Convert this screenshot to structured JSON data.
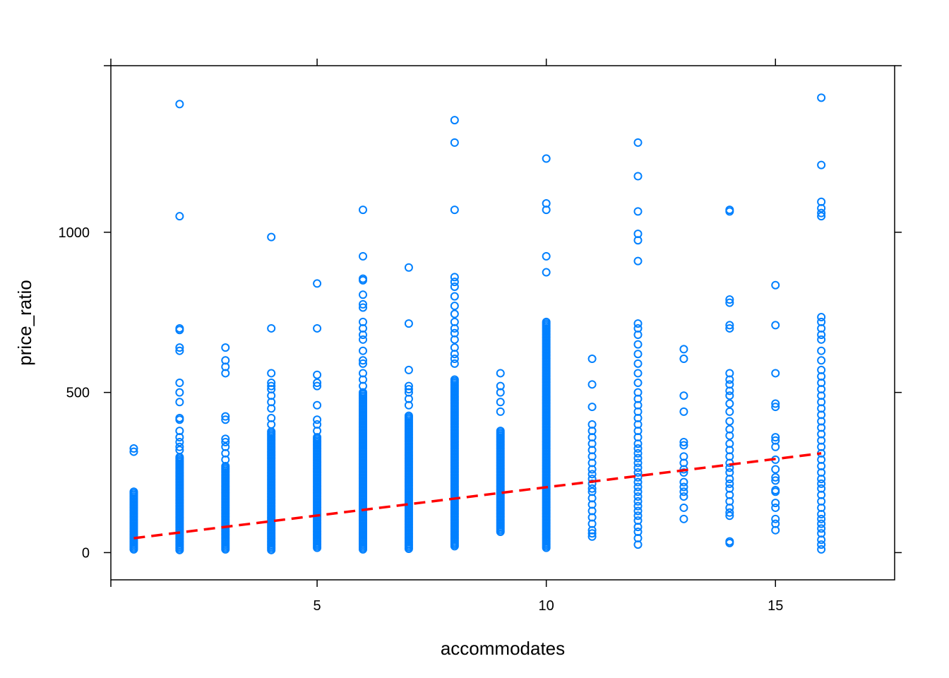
{
  "chart_data": {
    "type": "scatter",
    "title": "",
    "xlabel": "accommodates",
    "ylabel": "price_ratio",
    "xlim": [
      0.5,
      17.6
    ],
    "ylim": [
      -85,
      1520
    ],
    "x_ticks": [
      5,
      10,
      15
    ],
    "x_tick_labels": [
      "5",
      "10",
      "15"
    ],
    "y_ticks": [
      0,
      500,
      1000
    ],
    "y_tick_labels": [
      "0",
      "500",
      "1000"
    ],
    "grid": false,
    "point_color": "#0080ff",
    "fit_line": {
      "color": "#ff0000",
      "style": "dashed",
      "x": [
        1,
        16
      ],
      "y": [
        45,
        310
      ]
    },
    "columns": [
      {
        "x": 1,
        "ranges": [
          [
            10,
            190
          ]
        ],
        "outliers": [
          315,
          325
        ]
      },
      {
        "x": 2,
        "ranges": [
          [
            8,
            300
          ]
        ],
        "outliers": [
          320,
          330,
          345,
          360,
          380,
          415,
          420,
          470,
          500,
          530,
          630,
          640,
          695,
          700,
          1050,
          1400
        ]
      },
      {
        "x": 3,
        "ranges": [
          [
            10,
            270
          ]
        ],
        "outliers": [
          290,
          310,
          330,
          345,
          355,
          415,
          425,
          560,
          580,
          600,
          640
        ]
      },
      {
        "x": 4,
        "ranges": [
          [
            8,
            380
          ]
        ],
        "outliers": [
          400,
          420,
          450,
          470,
          490,
          510,
          520,
          530,
          560,
          700,
          985
        ]
      },
      {
        "x": 5,
        "ranges": [
          [
            15,
            360
          ]
        ],
        "outliers": [
          380,
          400,
          415,
          460,
          520,
          530,
          555,
          700,
          840
        ]
      },
      {
        "x": 6,
        "ranges": [
          [
            10,
            500
          ]
        ],
        "outliers": [
          520,
          540,
          560,
          590,
          600,
          630,
          665,
          680,
          700,
          720,
          765,
          775,
          805,
          850,
          855,
          925,
          1070
        ]
      },
      {
        "x": 7,
        "ranges": [
          [
            12,
            430
          ]
        ],
        "outliers": [
          460,
          480,
          500,
          510,
          520,
          570,
          715,
          890
        ]
      },
      {
        "x": 8,
        "ranges": [
          [
            20,
            540
          ]
        ],
        "outliers": [
          590,
          605,
          620,
          640,
          665,
          685,
          700,
          720,
          745,
          770,
          800,
          830,
          845,
          860,
          1070,
          1280,
          1350
        ]
      },
      {
        "x": 9,
        "ranges": [
          [
            65,
            380
          ]
        ],
        "outliers": [
          440,
          470,
          500,
          520,
          560
        ]
      },
      {
        "x": 10,
        "ranges": [
          [
            15,
            720
          ]
        ],
        "outliers": [
          875,
          925,
          1070,
          1090,
          1230
        ]
      },
      {
        "x": 11,
        "ranges": [],
        "outliers": [
          50,
          60,
          70,
          90,
          110,
          130,
          150,
          170,
          190,
          200,
          215,
          230,
          245,
          260,
          280,
          300,
          320,
          340,
          360,
          380,
          400,
          455,
          525,
          605
        ]
      },
      {
        "x": 12,
        "ranges": [],
        "outliers": [
          25,
          45,
          65,
          80,
          100,
          115,
          130,
          145,
          160,
          175,
          190,
          205,
          220,
          235,
          250,
          265,
          280,
          295,
          310,
          325,
          340,
          360,
          380,
          400,
          420,
          440,
          460,
          480,
          500,
          530,
          560,
          590,
          620,
          650,
          680,
          700,
          715,
          910,
          975,
          995,
          1065,
          1175,
          1280
        ]
      },
      {
        "x": 13,
        "ranges": [],
        "outliers": [
          105,
          140,
          175,
          190,
          205,
          220,
          250,
          260,
          280,
          300,
          335,
          345,
          440,
          490,
          605,
          635
        ]
      },
      {
        "x": 14,
        "ranges": [],
        "outliers": [
          30,
          35,
          115,
          125,
          140,
          160,
          180,
          200,
          215,
          230,
          250,
          265,
          280,
          300,
          320,
          340,
          365,
          385,
          410,
          440,
          465,
          490,
          505,
          525,
          540,
          560,
          700,
          710,
          780,
          790,
          1065,
          1070
        ]
      },
      {
        "x": 15,
        "ranges": [],
        "outliers": [
          70,
          90,
          105,
          140,
          155,
          190,
          195,
          225,
          235,
          260,
          290,
          330,
          350,
          360,
          455,
          465,
          560,
          710,
          835
        ]
      },
      {
        "x": 16,
        "ranges": [],
        "outliers": [
          10,
          25,
          40,
          60,
          75,
          90,
          105,
          120,
          140,
          160,
          180,
          200,
          215,
          230,
          250,
          270,
          290,
          310,
          330,
          350,
          370,
          390,
          410,
          430,
          450,
          470,
          490,
          510,
          530,
          550,
          570,
          600,
          630,
          665,
          680,
          700,
          720,
          735,
          1050,
          1060,
          1075,
          1095,
          1210,
          1420
        ]
      }
    ]
  }
}
